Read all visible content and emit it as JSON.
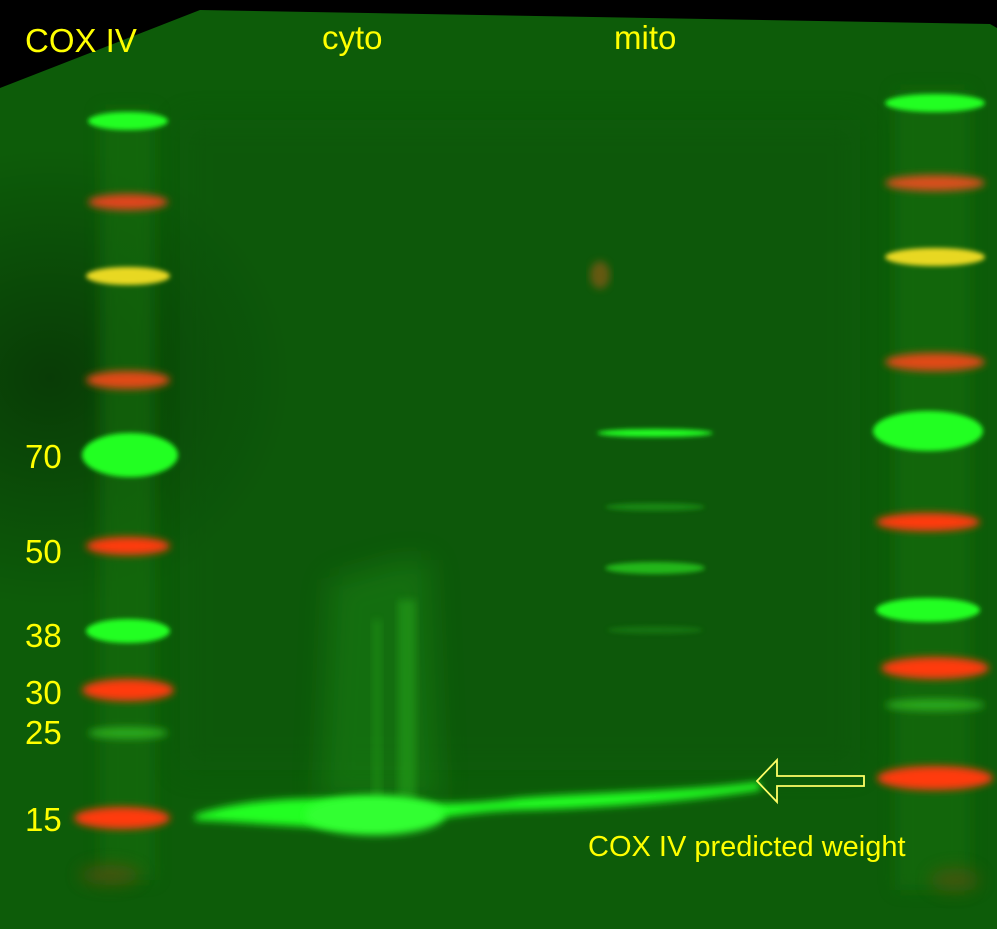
{
  "title": "COX IV",
  "lanes": {
    "cyto": "cyto",
    "mito": "mito"
  },
  "markers": [
    "70",
    "50",
    "38",
    "30",
    "25",
    "15"
  ],
  "annotation": "COX IV predicted weight",
  "colors": {
    "text": "#ffff00",
    "membrane": "#0c5a08",
    "background": "#000000",
    "band_green": "#22ff22",
    "band_red": "#ff3a10",
    "band_yellow": "#e8e020"
  }
}
